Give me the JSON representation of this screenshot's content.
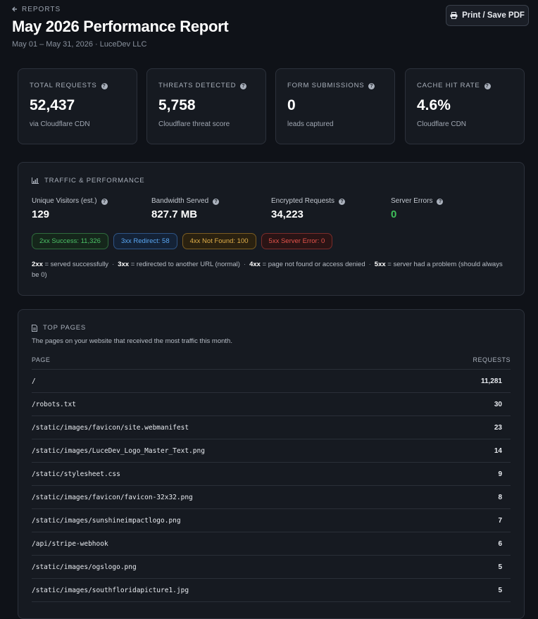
{
  "header": {
    "back": "REPORTS",
    "title": "May 2026 Performance Report",
    "subtitle": "May 01 – May 31, 2026 · LuceDev LLC",
    "print_button": "Print / Save PDF"
  },
  "stats": [
    {
      "label": "TOTAL REQUESTS",
      "value": "52,437",
      "note": "via Cloudflare CDN"
    },
    {
      "label": "THREATS DETECTED",
      "value": "5,758",
      "note": "Cloudflare threat score"
    },
    {
      "label": "FORM SUBMISSIONS",
      "value": "0",
      "note": "leads captured"
    },
    {
      "label": "CACHE HIT RATE",
      "value": "4.6%",
      "note": "Cloudflare CDN"
    }
  ],
  "traffic": {
    "title": "TRAFFIC & PERFORMANCE",
    "metrics": [
      {
        "label": "Unique Visitors (est.)",
        "value": "129"
      },
      {
        "label": "Bandwidth Served",
        "value": "827.7 MB"
      },
      {
        "label": "Encrypted Requests",
        "value": "34,223"
      },
      {
        "label": "Server Errors",
        "value": "0"
      }
    ],
    "badges": [
      "2xx Success: 11,326",
      "3xx Redirect: 58",
      "4xx Not Found: 100",
      "5xx Server Error: 0"
    ],
    "legend": [
      {
        "code": "2xx",
        "text": "= served successfully"
      },
      {
        "code": "3xx",
        "text": "= redirected to another URL (normal)"
      },
      {
        "code": "4xx",
        "text": "= page not found or access denied"
      },
      {
        "code": "5xx",
        "text": "= server had a problem (should always be 0)"
      }
    ]
  },
  "top_pages": {
    "title": "TOP PAGES",
    "description": "The pages on your website that received the most traffic this month.",
    "columns": [
      "PAGE",
      "REQUESTS"
    ],
    "rows": [
      [
        "/",
        "11,281"
      ],
      [
        "/robots.txt",
        "30"
      ],
      [
        "/static/images/favicon/site.webmanifest",
        "23"
      ],
      [
        "/static/images/LuceDev_Logo_Master_Text.png",
        "14"
      ],
      [
        "/static/stylesheet.css",
        "9"
      ],
      [
        "/static/images/favicon/favicon-32x32.png",
        "8"
      ],
      [
        "/static/images/sunshineimpactlogo.png",
        "7"
      ],
      [
        "/api/stripe-webhook",
        "6"
      ],
      [
        "/static/images/ogslogo.png",
        "5"
      ],
      [
        "/static/images/southfloridapicture1.jpg",
        "5"
      ]
    ]
  }
}
